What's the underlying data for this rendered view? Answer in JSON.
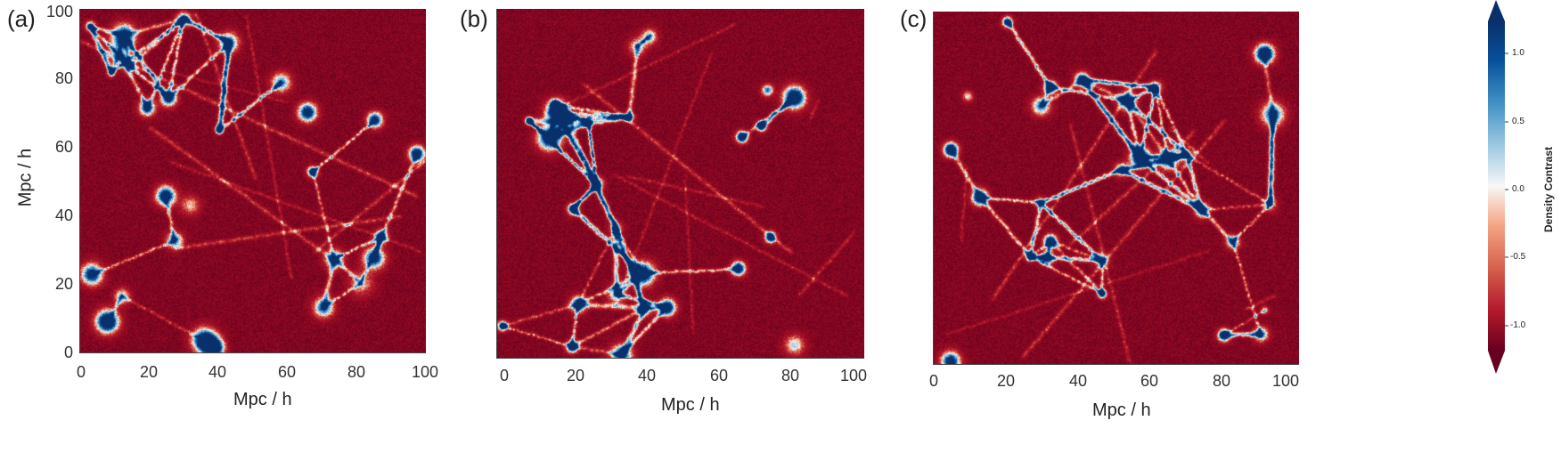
{
  "panels": [
    {
      "label": "(a)",
      "xlabel": "Mpc / h",
      "ylabel": "Mpc / h",
      "xticks": [
        "0",
        "20",
        "40",
        "60",
        "80",
        "100"
      ],
      "yticks": [
        "100",
        "80",
        "60",
        "40",
        "20",
        "0"
      ]
    },
    {
      "label": "(b)",
      "xlabel": "Mpc / h",
      "ylabel": "",
      "xticks": [
        "0",
        "20",
        "40",
        "60",
        "80",
        "100"
      ],
      "yticks": []
    },
    {
      "label": "(c)",
      "xlabel": "Mpc / h",
      "ylabel": "",
      "xticks": [
        "0",
        "20",
        "40",
        "60",
        "80",
        "100"
      ],
      "yticks": []
    }
  ],
  "colorbar": {
    "label": "Density Contrast",
    "ticks": [
      "1.0",
      "0.5",
      "0.0",
      "-0.5",
      "-1.0"
    ],
    "colors": {
      "high": "#08306b",
      "mid": "#f7f7f7",
      "low": "#67001f"
    }
  }
}
